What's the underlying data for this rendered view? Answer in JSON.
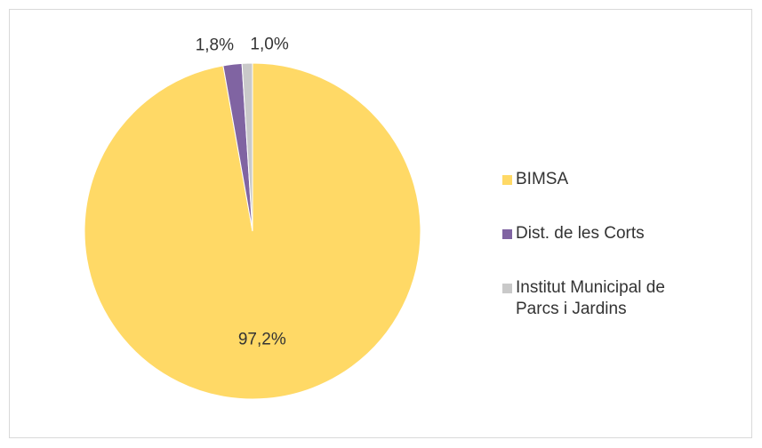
{
  "chart_data": {
    "type": "pie",
    "categories": [
      "BIMSA",
      "Dist. de les Corts",
      "Institut Municipal de Parcs i Jardins"
    ],
    "values": [
      97.2,
      1.8,
      1.0
    ],
    "value_labels": [
      "97,2%",
      "1,8%",
      "1,0%"
    ],
    "colors": [
      "#ffd966",
      "#8064a2",
      "#c9c9c9"
    ],
    "legend": "right"
  }
}
